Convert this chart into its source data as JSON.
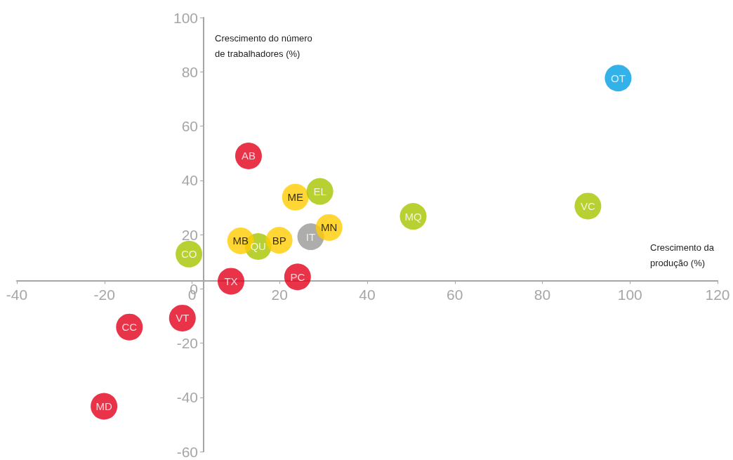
{
  "chart_data": {
    "type": "scatter",
    "xlabel": "Crescimento da\nprodução (%)",
    "ylabel": "Crescimento do número\nde trabalhadores (%)",
    "x": [
      97.3,
      90.4,
      50.5,
      -0.7,
      15.1,
      11.1,
      19.9,
      23.6,
      29.2,
      27.1,
      31.3,
      12.9,
      24.1,
      8.9,
      -2.2,
      -14.3,
      -20.1
    ],
    "values": [
      77.7,
      30.5,
      26.7,
      12.8,
      15.6,
      17.7,
      17.9,
      33.8,
      35.9,
      19.2,
      22.6,
      49.0,
      4.4,
      2.8,
      -10.8,
      -14.1,
      -43.3
    ],
    "colors": [
      "#009fe3",
      "#a8c400",
      "#a8c400",
      "#a8c400",
      "#a8c400",
      "#ffcc00",
      "#ffcc00",
      "#ffcc00",
      "#a8c400",
      "#999896",
      "#ffcc00",
      "#e2001a",
      "#e2001a",
      "#e2001a",
      "#e2001a",
      "#e2001a",
      "#e2001a"
    ],
    "annotations": [
      {
        "text": "OT",
        "x": 97.3,
        "y": 77.7
      },
      {
        "text": "VC",
        "x": 90.4,
        "y": 30.5
      },
      {
        "text": "MQ",
        "x": 50.5,
        "y": 26.7
      },
      {
        "text": "CO",
        "x": -0.7,
        "y": 12.8
      },
      {
        "text": "QU",
        "x": 15.1,
        "y": 15.6
      },
      {
        "text": "MB",
        "x": 11.1,
        "y": 17.7
      },
      {
        "text": "BP",
        "x": 19.9,
        "y": 17.9
      },
      {
        "text": "ME",
        "x": 23.6,
        "y": 33.8
      },
      {
        "text": "EL",
        "x": 29.2,
        "y": 35.9
      },
      {
        "text": "IT",
        "x": 27.1,
        "y": 19.2
      },
      {
        "text": "MN",
        "x": 31.3,
        "y": 22.6
      },
      {
        "text": "AB",
        "x": 12.9,
        "y": 49.0
      },
      {
        "text": "PC",
        "x": 24.1,
        "y": 4.4
      },
      {
        "text": "TX",
        "x": 8.9,
        "y": 2.8
      },
      {
        "text": "VT",
        "x": -2.2,
        "y": -10.8
      },
      {
        "text": "CC",
        "x": -14.3,
        "y": -14.1
      },
      {
        "text": "MD",
        "x": -20.1,
        "y": -43.3
      }
    ],
    "xlim": [
      -40,
      120
    ],
    "xticks": [
      -40,
      -20,
      0,
      20,
      40,
      60,
      80,
      100,
      120
    ],
    "ylim": [
      -60,
      100
    ],
    "yticks": [
      -60,
      -40,
      -20,
      0,
      20,
      40,
      60,
      80,
      100
    ],
    "grid": false,
    "marker": "circle"
  }
}
